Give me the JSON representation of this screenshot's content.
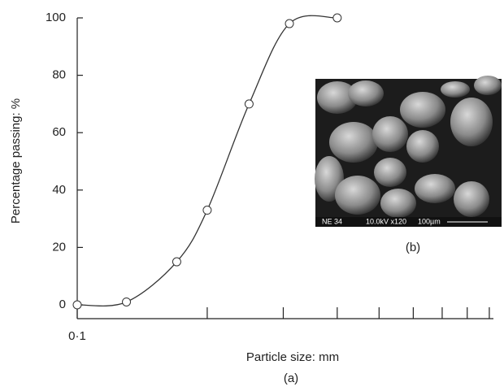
{
  "chart_data": {
    "type": "line",
    "xlabel": "Particle size: mm",
    "ylabel": "Percentage passing: %",
    "caption": "(a)",
    "xscale": "log",
    "xlim": [
      0.1,
      0.92
    ],
    "xticks": [
      {
        "value": 0.1,
        "label": "0·1"
      }
    ],
    "xminorticks": [
      0.2,
      0.3,
      0.4,
      0.5,
      0.6,
      0.7,
      0.8,
      0.9
    ],
    "ylim": [
      0,
      100
    ],
    "yticks": [
      0,
      20,
      40,
      60,
      80,
      100
    ],
    "x": [
      0.1,
      0.13,
      0.17,
      0.2,
      0.25,
      0.31,
      0.4
    ],
    "series": [
      {
        "color": "#333333",
        "values": [
          0,
          1,
          15,
          33,
          70,
          98,
          100
        ]
      }
    ]
  },
  "inset": {
    "caption": "(b)",
    "labels": [
      "NE 34",
      "10.0kV x120",
      "100µm"
    ]
  }
}
